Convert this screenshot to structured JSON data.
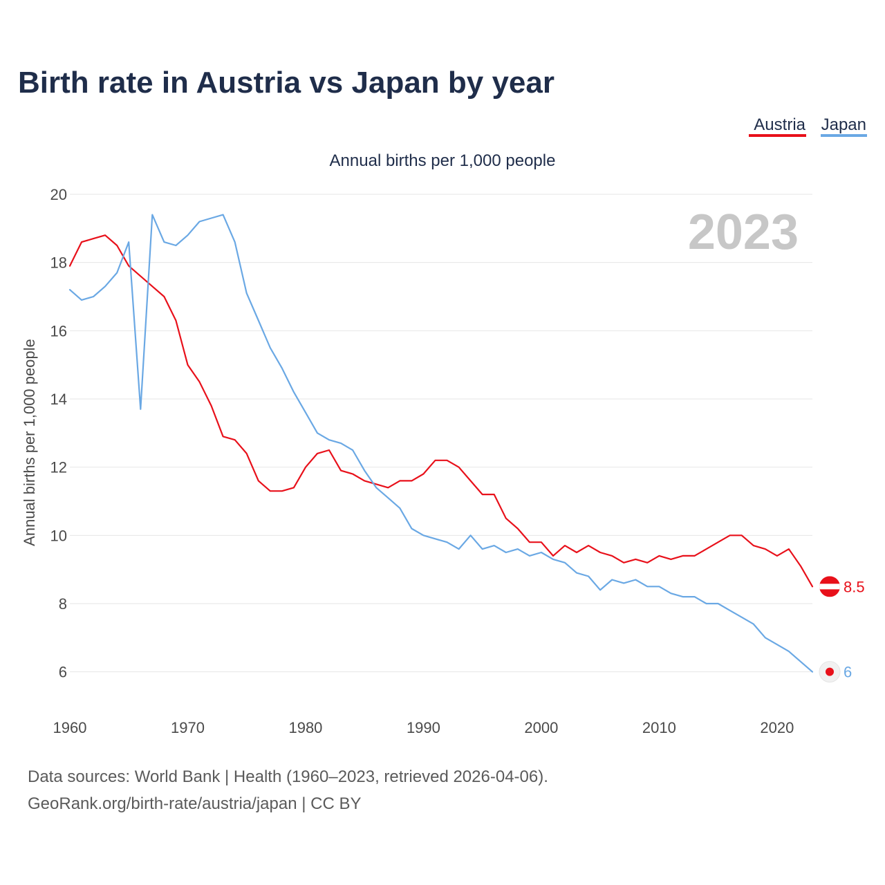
{
  "title": "Birth rate in Austria vs Japan by year",
  "subtitle": "Annual births per 1,000 people",
  "big_year": "2023",
  "legend": [
    {
      "name": "Austria",
      "color": "#e8101a"
    },
    {
      "name": "Japan",
      "color": "#6aa8e4"
    }
  ],
  "source_line1": "Data sources: World Bank | Health (1960–2023, retrieved 2026-04-06).",
  "source_line2": "GeoRank.org/birth-rate/austria/japan | CC BY",
  "chart_data": {
    "type": "line",
    "title": "Birth rate in Austria vs Japan by year",
    "xlabel": "",
    "ylabel": "Annual births per 1,000 people",
    "xlim": [
      1960,
      2023
    ],
    "ylim": [
      5,
      20
    ],
    "x_ticks": [
      1960,
      1970,
      1980,
      1990,
      2000,
      2010,
      2020
    ],
    "y_ticks": [
      6,
      8,
      10,
      12,
      14,
      16,
      18,
      20
    ],
    "x": [
      1960,
      1961,
      1962,
      1963,
      1964,
      1965,
      1966,
      1967,
      1968,
      1969,
      1970,
      1971,
      1972,
      1973,
      1974,
      1975,
      1976,
      1977,
      1978,
      1979,
      1980,
      1981,
      1982,
      1983,
      1984,
      1985,
      1986,
      1987,
      1988,
      1989,
      1990,
      1991,
      1992,
      1993,
      1994,
      1995,
      1996,
      1997,
      1998,
      1999,
      2000,
      2001,
      2002,
      2003,
      2004,
      2005,
      2006,
      2007,
      2008,
      2009,
      2010,
      2011,
      2012,
      2013,
      2014,
      2015,
      2016,
      2017,
      2018,
      2019,
      2020,
      2021,
      2022,
      2023
    ],
    "series": [
      {
        "name": "Austria",
        "color": "#e8101a",
        "end_label": "8.5",
        "values": [
          17.9,
          18.6,
          18.7,
          18.8,
          18.5,
          17.9,
          17.6,
          17.3,
          17.0,
          16.3,
          15.0,
          14.5,
          13.8,
          12.9,
          12.8,
          12.4,
          11.6,
          11.3,
          11.3,
          11.4,
          12.0,
          12.4,
          12.5,
          11.9,
          11.8,
          11.6,
          11.5,
          11.4,
          11.6,
          11.6,
          11.8,
          12.2,
          12.2,
          12.0,
          11.6,
          11.2,
          11.2,
          10.5,
          10.2,
          9.8,
          9.8,
          9.4,
          9.7,
          9.5,
          9.7,
          9.5,
          9.4,
          9.2,
          9.3,
          9.2,
          9.4,
          9.3,
          9.4,
          9.4,
          9.6,
          9.8,
          10.0,
          10.0,
          9.7,
          9.6,
          9.4,
          9.6,
          9.1,
          8.5
        ]
      },
      {
        "name": "Japan",
        "color": "#6aa8e4",
        "end_label": "6",
        "values": [
          17.2,
          16.9,
          17.0,
          17.3,
          17.7,
          18.6,
          13.7,
          19.4,
          18.6,
          18.5,
          18.8,
          19.2,
          19.3,
          19.4,
          18.6,
          17.1,
          16.3,
          15.5,
          14.9,
          14.2,
          13.6,
          13.0,
          12.8,
          12.7,
          12.5,
          11.9,
          11.4,
          11.1,
          10.8,
          10.2,
          10.0,
          9.9,
          9.8,
          9.6,
          10.0,
          9.6,
          9.7,
          9.5,
          9.6,
          9.4,
          9.5,
          9.3,
          9.2,
          8.9,
          8.8,
          8.4,
          8.7,
          8.6,
          8.7,
          8.5,
          8.5,
          8.3,
          8.2,
          8.2,
          8.0,
          8.0,
          7.8,
          7.6,
          7.4,
          7.0,
          6.8,
          6.6,
          6.3,
          6.0
        ]
      }
    ]
  }
}
